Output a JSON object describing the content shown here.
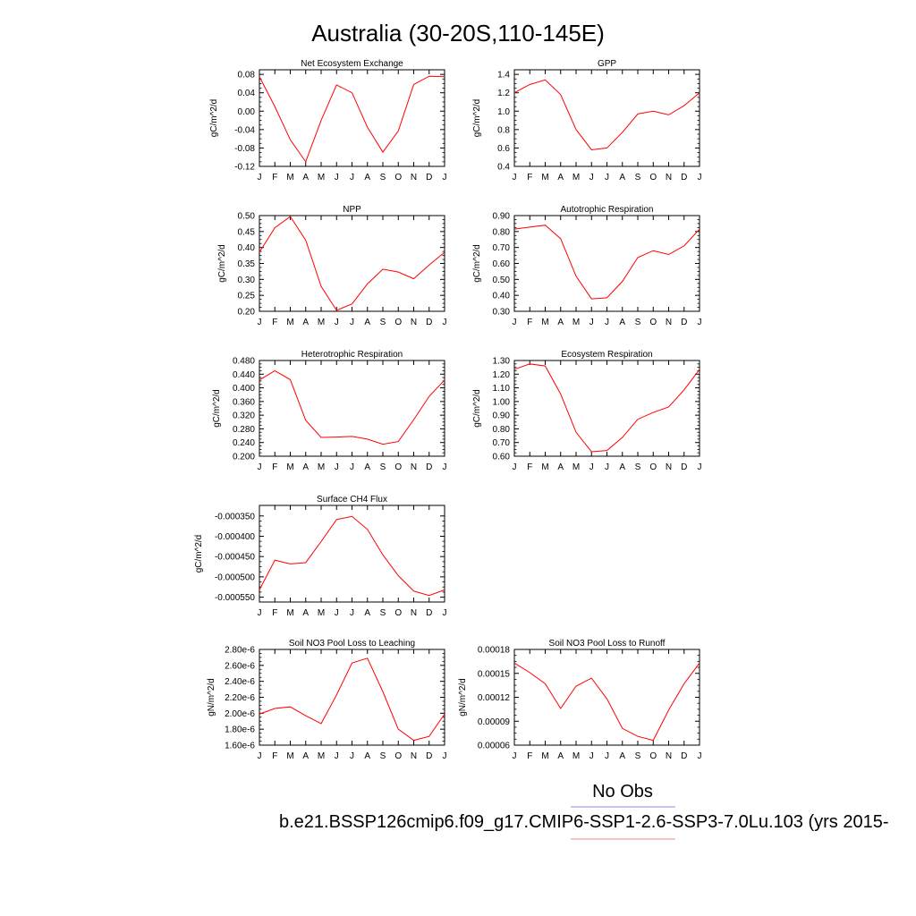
{
  "page": {
    "title": "Australia (30-20S,110-145E)",
    "legend_label": "No Obs",
    "caption": "b.e21.BSSP126cmip6.f09_g17.CMIP6-SSP1-2.6-SSP3-7.0Lu.103 (yrs 2015-",
    "colors": {
      "series": "#ff0000",
      "legend_obs": "#8a8af0",
      "legend_model": "#f08a8a"
    }
  },
  "chart_data": [
    {
      "type": "line",
      "title": "Net Ecosystem Exchange",
      "ylabel": "gC/m^2/d",
      "x": [
        "J",
        "F",
        "M",
        "A",
        "M",
        "J",
        "J",
        "A",
        "S",
        "O",
        "N",
        "D",
        "J"
      ],
      "ylim": [
        -0.12,
        0.09
      ],
      "yticks": [
        0.08,
        0.04,
        0.0,
        -0.04,
        -0.08,
        -0.12
      ],
      "yticklabels": [
        "0.08",
        "0.04",
        "0.00",
        "-0.04",
        "-0.08",
        "-0.12"
      ],
      "series": [
        {
          "values": [
            0.075,
            0.01,
            -0.062,
            -0.11,
            -0.02,
            0.057,
            0.04,
            -0.035,
            -0.089,
            -0.043,
            0.058,
            0.076,
            0.075
          ]
        }
      ]
    },
    {
      "type": "line",
      "title": "GPP",
      "ylabel": "gC/m^2/d",
      "x": [
        "J",
        "F",
        "M",
        "A",
        "M",
        "J",
        "J",
        "A",
        "S",
        "O",
        "N",
        "D",
        "J"
      ],
      "ylim": [
        0.4,
        1.45
      ],
      "yticks": [
        1.4,
        1.2,
        1.0,
        0.8,
        0.6,
        0.4
      ],
      "yticklabels": [
        "1.4",
        "1.2",
        "1.0",
        "0.8",
        "0.6",
        "0.4"
      ],
      "series": [
        {
          "values": [
            1.2,
            1.29,
            1.34,
            1.18,
            0.8,
            0.58,
            0.6,
            0.77,
            0.97,
            1.0,
            0.96,
            1.06,
            1.2
          ]
        }
      ]
    },
    {
      "type": "line",
      "title": "NPP",
      "ylabel": "gC/m^2/d",
      "x": [
        "J",
        "F",
        "M",
        "A",
        "M",
        "J",
        "J",
        "A",
        "S",
        "O",
        "N",
        "D",
        "J"
      ],
      "ylim": [
        0.2,
        0.5
      ],
      "yticks": [
        0.5,
        0.45,
        0.4,
        0.35,
        0.3,
        0.25,
        0.2
      ],
      "yticklabels": [
        "0.50",
        "0.45",
        "0.40",
        "0.35",
        "0.30",
        "0.25",
        "0.20"
      ],
      "series": [
        {
          "values": [
            0.385,
            0.462,
            0.497,
            0.423,
            0.278,
            0.203,
            0.223,
            0.286,
            0.332,
            0.323,
            0.302,
            0.345,
            0.385
          ]
        }
      ]
    },
    {
      "type": "line",
      "title": "Autotrophic Respiration",
      "ylabel": "gC/m^2/d",
      "x": [
        "J",
        "F",
        "M",
        "A",
        "M",
        "J",
        "J",
        "A",
        "S",
        "O",
        "N",
        "D",
        "J"
      ],
      "ylim": [
        0.3,
        0.9
      ],
      "yticks": [
        0.9,
        0.8,
        0.7,
        0.6,
        0.5,
        0.4,
        0.3
      ],
      "yticklabels": [
        "0.90",
        "0.80",
        "0.70",
        "0.60",
        "0.50",
        "0.40",
        "0.30"
      ],
      "series": [
        {
          "values": [
            0.815,
            0.828,
            0.84,
            0.755,
            0.52,
            0.378,
            0.385,
            0.487,
            0.637,
            0.68,
            0.656,
            0.71,
            0.815
          ]
        }
      ]
    },
    {
      "type": "line",
      "title": "Heterotrophic Respiration",
      "ylabel": "gC/m^2/d",
      "x": [
        "J",
        "F",
        "M",
        "A",
        "M",
        "J",
        "J",
        "A",
        "S",
        "O",
        "N",
        "D",
        "J"
      ],
      "ylim": [
        0.2,
        0.48
      ],
      "yticks": [
        0.48,
        0.44,
        0.4,
        0.36,
        0.32,
        0.28,
        0.24,
        0.2
      ],
      "yticklabels": [
        "0.480",
        "0.440",
        "0.400",
        "0.360",
        "0.320",
        "0.280",
        "0.240",
        "0.200"
      ],
      "series": [
        {
          "values": [
            0.423,
            0.45,
            0.424,
            0.305,
            0.255,
            0.256,
            0.258,
            0.25,
            0.235,
            0.243,
            0.307,
            0.375,
            0.423
          ]
        }
      ]
    },
    {
      "type": "line",
      "title": "Ecosystem Respiration",
      "ylabel": "gC/m^2/d",
      "x": [
        "J",
        "F",
        "M",
        "A",
        "M",
        "J",
        "J",
        "A",
        "S",
        "O",
        "N",
        "D",
        "J"
      ],
      "ylim": [
        0.6,
        1.3
      ],
      "yticks": [
        1.3,
        1.2,
        1.1,
        1.0,
        0.9,
        0.8,
        0.7,
        0.6
      ],
      "yticklabels": [
        "1.30",
        "1.20",
        "1.10",
        "1.00",
        "0.90",
        "0.80",
        "0.70",
        "0.60"
      ],
      "series": [
        {
          "values": [
            1.235,
            1.275,
            1.26,
            1.055,
            0.775,
            0.633,
            0.642,
            0.737,
            0.87,
            0.92,
            0.96,
            1.085,
            1.235
          ]
        }
      ]
    },
    {
      "type": "line",
      "title": "Surface CH4 Flux",
      "ylabel": "gC/m^2/d",
      "x": [
        "J",
        "F",
        "M",
        "A",
        "M",
        "J",
        "J",
        "A",
        "S",
        "O",
        "N",
        "D",
        "J"
      ],
      "ylim": [
        -0.000562,
        -0.000324
      ],
      "yticks": [
        -0.00035,
        -0.0004,
        -0.00045,
        -0.0005,
        -0.00055
      ],
      "yticklabels": [
        "-0.000350",
        "-0.000400",
        "-0.000450",
        "-0.000500",
        "-0.000550"
      ],
      "series": [
        {
          "values": [
            -0.000532,
            -0.000459,
            -0.000468,
            -0.000465,
            -0.000413,
            -0.000359,
            -0.000351,
            -0.000383,
            -0.000446,
            -0.000497,
            -0.000535,
            -0.000546,
            -0.000532
          ]
        }
      ]
    },
    {
      "type": "line",
      "title": "Soil NO3 Pool Loss to Leaching",
      "ylabel": "gN/m^2/d",
      "x": [
        "J",
        "F",
        "M",
        "A",
        "M",
        "J",
        "J",
        "A",
        "S",
        "O",
        "N",
        "D",
        "J"
      ],
      "ylim": [
        1.6e-06,
        2.8e-06
      ],
      "yticks": [
        2.8e-06,
        2.6e-06,
        2.4e-06,
        2.2e-06,
        2e-06,
        1.8e-06,
        1.6e-06
      ],
      "yticklabels": [
        "2.80e-6",
        "2.60e-6",
        "2.40e-6",
        "2.20e-6",
        "2.00e-6",
        "1.80e-6",
        "1.60e-6"
      ],
      "series": [
        {
          "values": [
            1.99e-06,
            2.06e-06,
            2.08e-06,
            1.97e-06,
            1.87e-06,
            2.23e-06,
            2.63e-06,
            2.69e-06,
            2.27e-06,
            1.8e-06,
            1.66e-06,
            1.71e-06,
            1.99e-06
          ]
        }
      ]
    },
    {
      "type": "line",
      "title": "Soil NO3 Pool Loss to Runoff",
      "ylabel": "gN/m^2/d",
      "x": [
        "J",
        "F",
        "M",
        "A",
        "M",
        "J",
        "J",
        "A",
        "S",
        "O",
        "N",
        "D",
        "J"
      ],
      "ylim": [
        6e-05,
        0.00018
      ],
      "yticks": [
        0.00018,
        0.00015,
        0.00012,
        9e-05,
        6e-05
      ],
      "yticklabels": [
        "0.00018",
        "0.00015",
        "0.00012",
        "0.00009",
        "0.00006"
      ],
      "series": [
        {
          "values": [
            0.000163,
            0.000151,
            0.000137,
            0.000106,
            0.000134,
            0.000144,
            0.000118,
            8.1e-05,
            7.1e-05,
            6.6e-05,
            0.000104,
            0.000137,
            0.000163
          ]
        }
      ]
    }
  ]
}
